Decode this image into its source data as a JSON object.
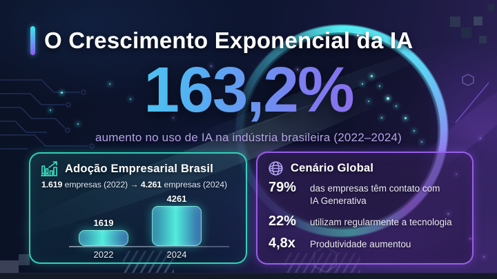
{
  "header": {
    "title": "O Crescimento Exponencial da IA"
  },
  "hero": {
    "value": "163,2%",
    "subtitle": "aumento no uso de IA na indústria brasileira (2022–2024)"
  },
  "brazil_card": {
    "icon": "factory-growth-icon",
    "title": "Adoção Empresarial Brasil",
    "summary": [
      {
        "text": "1.619",
        "bold": true
      },
      {
        "text": " empresas (2022) → ",
        "bold": false
      },
      {
        "text": "4.261",
        "bold": true
      },
      {
        "text": " empresas (2024)",
        "bold": false
      }
    ]
  },
  "chart_data": {
    "type": "bar",
    "title": "Adoção Empresarial Brasil",
    "categories": [
      "2022",
      "2024"
    ],
    "values": [
      1619,
      4261
    ],
    "value_labels": [
      "1619",
      "4261"
    ],
    "xlabel": "",
    "ylabel": "",
    "ylim": [
      0,
      4500
    ],
    "grid": false,
    "legend": false
  },
  "global_card": {
    "icon": "globe-icon",
    "title": "Cenário Global",
    "stats": [
      {
        "value": "79%",
        "description": "das empresas têm contato com IA Generativa"
      },
      {
        "value": "22%",
        "description": "utilizam regularmente a tecnologia"
      },
      {
        "value": "4,8x",
        "description": "Produtividade aumentou"
      }
    ]
  },
  "colors": {
    "accent_cyan": "#38e6c9",
    "accent_purple": "#9b5cf6",
    "hero_gradient_start": "#40e4ee",
    "hero_gradient_end": "#9a5ce8",
    "subtitle_text": "#b4a3ea",
    "brazil_card_border": "#34e2c2",
    "global_card_border": "#9f62f2"
  }
}
